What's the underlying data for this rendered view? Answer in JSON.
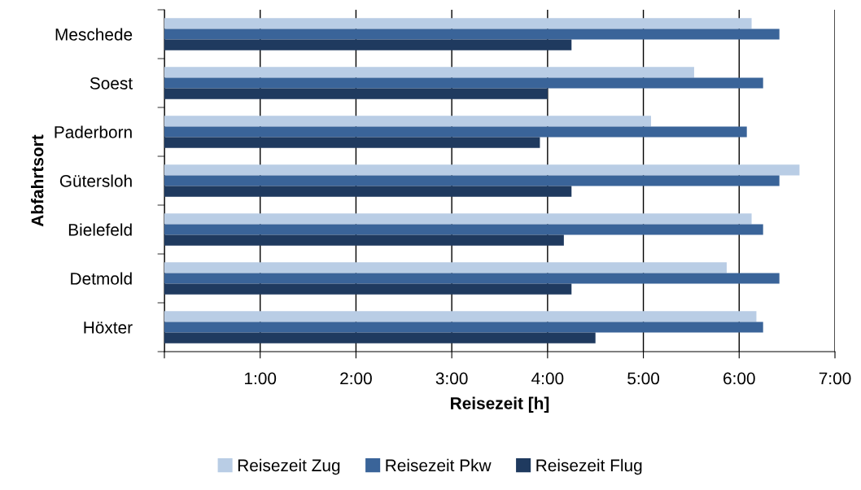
{
  "chart_data": {
    "type": "bar",
    "orientation": "horizontal",
    "xlabel": "Reisezeit [h]",
    "ylabel": "Abfahrtsort",
    "categories": [
      "Meschede",
      "Soest",
      "Paderborn",
      "Gütersloh",
      "Bielefeld",
      "Detmold",
      "Höxter"
    ],
    "series": [
      {
        "name": "Reisezeit Zug",
        "color": "#b9cde5",
        "values": [
          6.13,
          5.53,
          5.08,
          6.63,
          6.13,
          5.87,
          6.18
        ]
      },
      {
        "name": "Reisezeit Pkw",
        "color": "#3a6499",
        "values": [
          6.42,
          6.25,
          6.08,
          6.42,
          6.25,
          6.42,
          6.25
        ]
      },
      {
        "name": "Reisezeit Flug",
        "color": "#1f3a5f",
        "values": [
          4.25,
          4.0,
          3.92,
          4.25,
          4.17,
          4.25,
          4.5
        ]
      }
    ],
    "xlim": [
      0,
      7
    ],
    "xticks": [
      {
        "value": 0,
        "label": null
      },
      {
        "value": 1,
        "label": "1:00"
      },
      {
        "value": 2,
        "label": "2:00"
      },
      {
        "value": 3,
        "label": "3:00"
      },
      {
        "value": 4,
        "label": "4:00"
      },
      {
        "value": 5,
        "label": "5:00"
      },
      {
        "value": 6,
        "label": "6:00"
      },
      {
        "value": 7,
        "label": "7:00"
      }
    ],
    "grid": "x",
    "legend": "bottom"
  }
}
